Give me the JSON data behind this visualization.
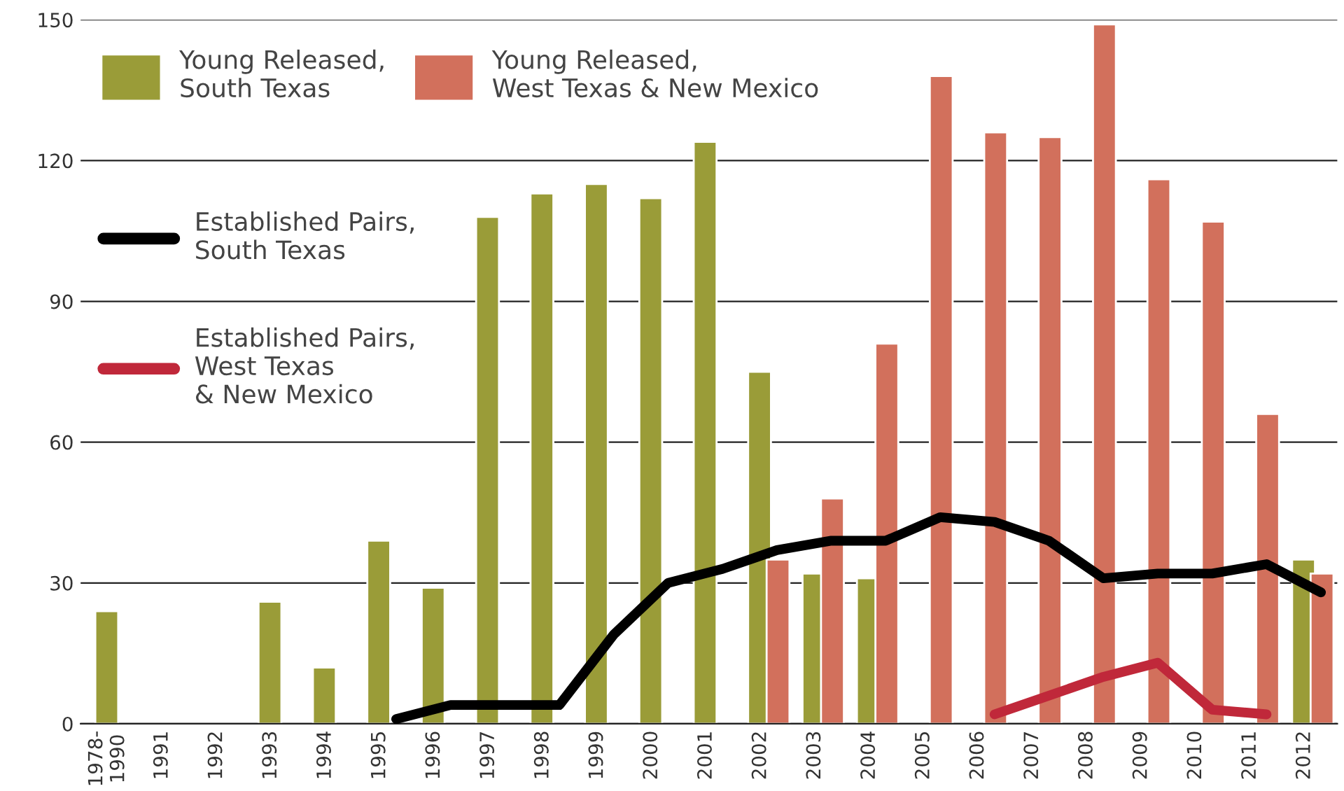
{
  "chart_data": {
    "type": "bar",
    "categories": [
      "1978-\n1990",
      "1991",
      "1992",
      "1993",
      "1994",
      "1995",
      "1996",
      "1997",
      "1998",
      "1999",
      "2000",
      "2001",
      "2002",
      "2003",
      "2004",
      "2005",
      "2006",
      "2007",
      "2008",
      "2009",
      "2010",
      "2011",
      "2012"
    ],
    "series": [
      {
        "name": "Young Released,\nSouth Texas",
        "color": "#9a9c38",
        "values": [
          24,
          null,
          null,
          26,
          12,
          39,
          29,
          108,
          113,
          115,
          112,
          124,
          75,
          32,
          31,
          null,
          null,
          null,
          null,
          null,
          null,
          null,
          35
        ]
      },
      {
        "name": "Young Released,\nWest Texas & New Mexico",
        "color": "#d2705c",
        "values": [
          null,
          null,
          null,
          null,
          null,
          null,
          null,
          null,
          null,
          null,
          null,
          null,
          35,
          48,
          81,
          138,
          126,
          125,
          149,
          116,
          107,
          66,
          32
        ]
      },
      {
        "name": "Established Pairs,\nSouth Texas",
        "type": "line",
        "color": "#000000",
        "values": [
          null,
          null,
          null,
          null,
          null,
          1,
          4,
          4,
          4,
          19,
          30,
          33,
          37,
          39,
          39,
          44,
          43,
          39,
          31,
          32,
          32,
          34,
          28
        ]
      },
      {
        "name": "Established Pairs,\nWest Texas\n& New Mexico",
        "type": "line",
        "color": "#c0283a",
        "values": [
          null,
          null,
          null,
          null,
          null,
          null,
          null,
          null,
          null,
          null,
          null,
          null,
          null,
          null,
          null,
          null,
          2,
          6,
          10,
          13,
          3,
          2,
          null
        ]
      }
    ],
    "ylim": [
      0,
      150
    ],
    "yticks": [
      0,
      30,
      60,
      90,
      120,
      150
    ],
    "grid": "y",
    "legend": "top left",
    "marker": "none",
    "line_style": "solid"
  }
}
